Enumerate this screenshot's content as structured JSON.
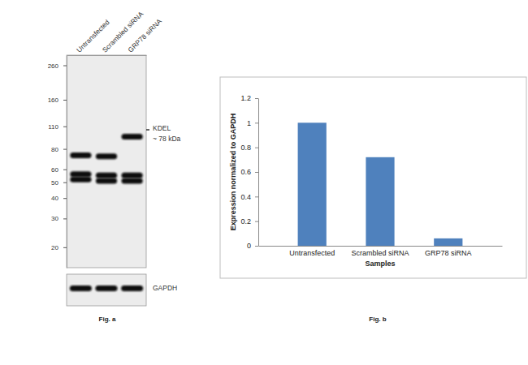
{
  "chart_data": [
    {
      "type": "western_blot",
      "title": "Fig. a",
      "categories": [
        "Untransfected",
        "Scrambled siRNA",
        "GRP78 siRNA"
      ],
      "ylim": [
        15,
        300
      ],
      "yticks": [
        260,
        160,
        110,
        80,
        60,
        50,
        40,
        30,
        20
      ],
      "log": "y",
      "bands": [
        {
          "lane": 0,
          "kda": 73
        },
        {
          "lane": 0,
          "kda": 56
        },
        {
          "lane": 0,
          "kda": 52
        },
        {
          "lane": 1,
          "kda": 72
        },
        {
          "lane": 1,
          "kda": 55
        },
        {
          "lane": 1,
          "kda": 51
        },
        {
          "lane": 2,
          "kda": 95
        },
        {
          "lane": 2,
          "kda": 55
        },
        {
          "lane": 2,
          "kda": 51
        }
      ],
      "annotations": [
        "KDEL",
        "~ 78 kDa",
        "GAPDH"
      ]
    },
    {
      "type": "bar",
      "title": "Fig. b",
      "categories": [
        "Untransfected",
        "Scrambled siRNA",
        "GRP78 siRNA"
      ],
      "values": [
        1,
        0.72,
        0.06
      ],
      "color": "#4f81bd",
      "ylim": [
        0,
        1.2
      ],
      "yticks": [
        0,
        0.2,
        0.4,
        0.6,
        0.8,
        1,
        1.2
      ],
      "x_label": "Samples",
      "y_label": "Expression normalized to GAPDH",
      "grid": false
    }
  ]
}
